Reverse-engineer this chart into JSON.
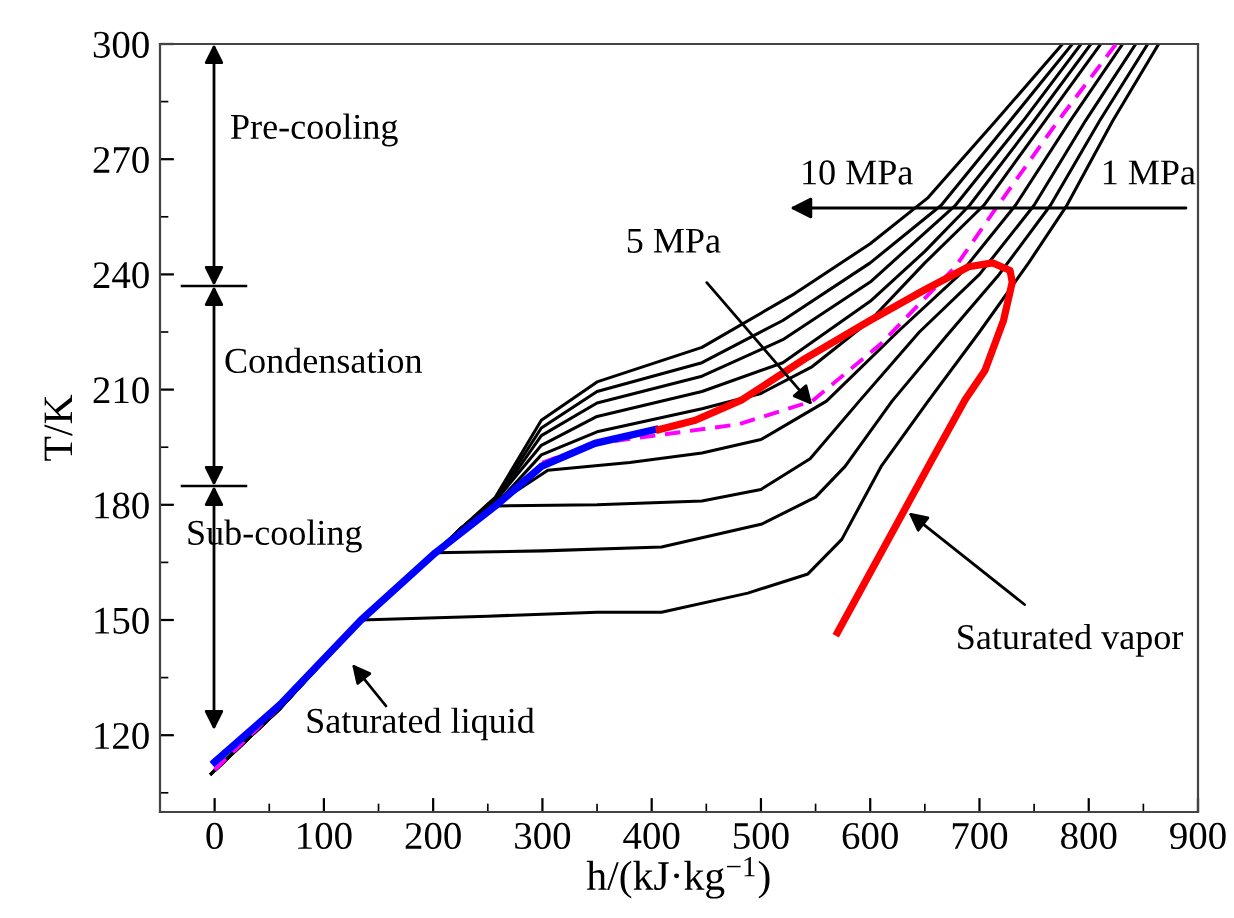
{
  "chart_data": {
    "type": "line",
    "xlabel": "h/(kJ·kg$^{−1}$)",
    "ylabel": "T/K",
    "xlim": [
      -50,
      900
    ],
    "ylim": [
      100,
      300
    ],
    "xticks": [
      0,
      {
        "value": 50,
        "label": null
      },
      100,
      {
        "value": 150,
        "label": null
      },
      200,
      {
        "value": 250,
        "label": null
      },
      300,
      {
        "value": 350,
        "label": null
      },
      400,
      {
        "value": 450,
        "label": null
      },
      500,
      {
        "value": 550,
        "label": null
      },
      600,
      {
        "value": 650,
        "label": null
      },
      700,
      {
        "value": 750,
        "label": null
      },
      800,
      {
        "value": 850,
        "label": null
      },
      900
    ],
    "yticks": [
      {
        "value": 105,
        "label": null
      },
      120,
      {
        "value": 135,
        "label": null
      },
      150,
      {
        "value": 165,
        "label": null
      },
      180,
      {
        "value": 195,
        "label": null
      },
      210,
      {
        "value": 225,
        "label": null
      },
      240,
      {
        "value": 255,
        "label": null
      },
      270,
      {
        "value": 285,
        "label": null
      },
      300
    ],
    "grid": false,
    "legend": false,
    "series": [
      {
        "color": "#000000",
        "x": [
          -3,
          60,
          134,
          250,
          350,
          409,
          488,
          543,
          574,
          610,
          653,
          700,
          745,
          780,
          822,
          864
        ],
        "values": [
          110,
          127,
          150,
          151,
          152,
          152,
          157,
          162,
          171,
          190,
          207,
          225,
          243,
          258,
          280,
          300
        ]
      },
      {
        "color": "#000000",
        "x": [
          -3,
          60,
          134,
          202,
          300,
          409,
          501,
          550,
          577,
          620,
          670,
          718,
          765,
          810,
          854
        ],
        "values": [
          110,
          127,
          150,
          167.5,
          168,
          169,
          175,
          182,
          190,
          207,
          224,
          240,
          258,
          280,
          300
        ]
      },
      {
        "color": "#000000",
        "x": [
          -3,
          60,
          134,
          202,
          226,
          257,
          350,
          446,
          500,
          545,
          590,
          645,
          700,
          750,
          797,
          843
        ],
        "values": [
          110,
          127,
          150,
          167.5,
          174,
          179.7,
          180,
          181,
          184,
          192,
          207,
          225,
          240,
          258,
          280,
          300
        ]
      },
      {
        "color": "#000000",
        "x": [
          -3,
          60,
          134,
          202,
          226,
          257,
          305,
          380,
          446,
          500,
          530,
          560,
          625,
          682,
          733,
          783,
          831
        ],
        "values": [
          110,
          127,
          150,
          167.5,
          174,
          180,
          189,
          191,
          193.5,
          197,
          202,
          207,
          225,
          240,
          258,
          280,
          300
        ]
      },
      {
        "color": "#000000",
        "x": [
          -3,
          60,
          134,
          202,
          226,
          257,
          299,
          350,
          446,
          500,
          547,
          600,
          650,
          704,
          760,
          811
        ],
        "values": [
          110,
          127,
          150,
          167.5,
          174,
          180,
          193,
          199,
          205,
          209,
          216,
          228,
          243,
          258,
          280,
          300
        ]
      },
      {
        "color": "#000000",
        "x": [
          -3,
          60,
          134,
          202,
          226,
          257,
          299,
          350,
          446,
          520,
          600,
          650,
          691,
          750,
          802
        ],
        "values": [
          110,
          127,
          150,
          167.5,
          174,
          181,
          195.5,
          203,
          209.5,
          217,
          233,
          246,
          258,
          280,
          300
        ]
      },
      {
        "color": "#000000",
        "x": [
          -3,
          60,
          134,
          202,
          226,
          257,
          299,
          350,
          446,
          520,
          600,
          678,
          740,
          793
        ],
        "values": [
          110,
          127,
          150,
          167.5,
          174,
          181,
          198,
          206.5,
          213.5,
          223,
          238,
          258,
          280,
          300
        ]
      },
      {
        "color": "#000000",
        "x": [
          -3,
          60,
          134,
          202,
          226,
          257,
          299,
          350,
          446,
          520,
          600,
          665,
          728,
          785
        ],
        "values": [
          110,
          127,
          150,
          167.5,
          174,
          181.5,
          200,
          209.5,
          217,
          228,
          243,
          258,
          280,
          300
        ]
      },
      {
        "color": "#000000",
        "x": [
          -3,
          60,
          134,
          202,
          226,
          257,
          299,
          350,
          446,
          531,
          600,
          653,
          715,
          776
        ],
        "values": [
          110,
          127,
          150,
          167.5,
          174,
          182,
          202,
          212,
          221,
          235,
          248,
          260,
          280,
          300
        ]
      },
      {
        "color": "#ff00ff",
        "line_style": "dashed",
        "x": [
          0,
          60,
          134,
          202,
          257,
          300,
          350,
          421,
          480,
          547,
          610,
          678,
          717,
          772,
          825
        ],
        "values": [
          111,
          127.5,
          null,
          null,
          null,
          191,
          196,
          198.7,
          201,
          207,
          222,
          242,
          258,
          280,
          300
        ]
      },
      {
        "color": "#0000ff",
        "x": [
          0,
          60,
          134,
          202,
          257,
          299,
          348,
          403
        ],
        "values": [
          113,
          128,
          150,
          167.5,
          179.7,
          190,
          196,
          199.6
        ]
      },
      {
        "color": "#ff0000",
        "x": [
          407,
          440,
          483,
          540,
          600,
          650,
          690,
          712,
          728,
          730,
          722,
          705,
          687,
          657,
          570
        ],
        "values": [
          199.6,
          202,
          207.4,
          218,
          228,
          236,
          242,
          243,
          241,
          238,
          228,
          215,
          207.4,
          192,
          146.7
        ]
      }
    ],
    "annotations": [
      "Pre-cooling",
      "Condensation",
      "Sub-cooling",
      "10 MPa",
      "1 MPa",
      {
        "text": "5 MPa",
        "x": 547,
        "y": 206
      },
      {
        "text": "Saturated vapor",
        "x": 635,
        "y": 178
      },
      "Saturated liquid"
    ]
  }
}
